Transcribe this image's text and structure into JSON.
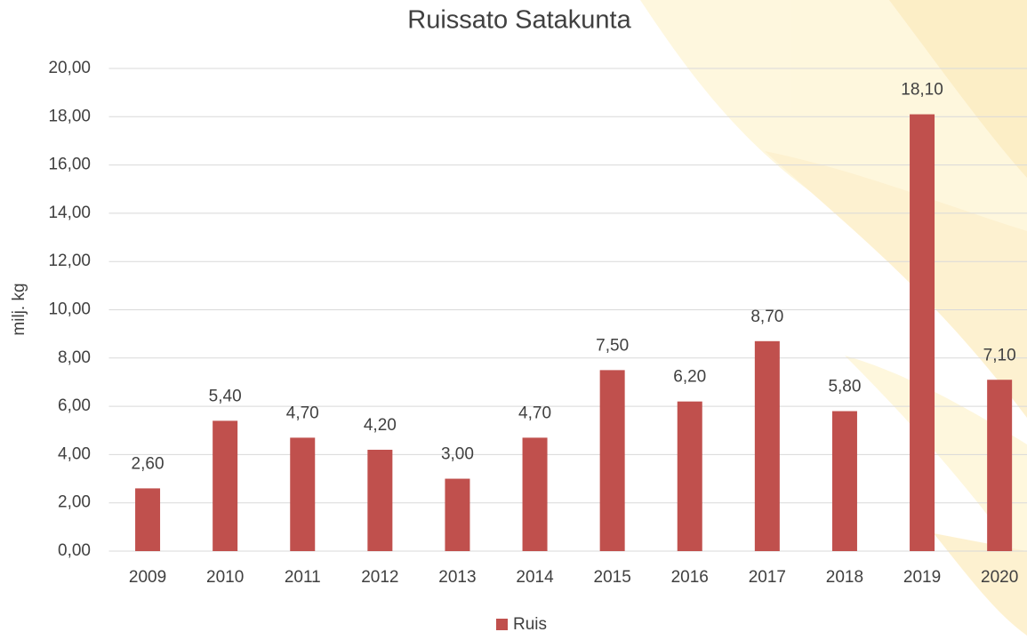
{
  "chart_data": {
    "type": "bar",
    "title": "Ruissato Satakunta",
    "ylabel": "milj. kg",
    "categories": [
      "2009",
      "2010",
      "2011",
      "2012",
      "2013",
      "2014",
      "2015",
      "2016",
      "2017",
      "2018",
      "2019",
      "2020"
    ],
    "series": [
      {
        "name": "Ruis",
        "color": "#c0504d",
        "values": [
          2.6,
          5.4,
          4.7,
          4.2,
          3.0,
          4.7,
          7.5,
          6.2,
          8.7,
          5.8,
          18.1,
          7.1
        ],
        "value_labels": [
          "2,60",
          "5,40",
          "4,70",
          "4,20",
          "3,00",
          "4,70",
          "7,50",
          "6,20",
          "8,70",
          "5,80",
          "18,10",
          "7,10"
        ]
      }
    ],
    "ylim": [
      0,
      20
    ],
    "yticks": [
      {
        "value": 0,
        "label": "0,00"
      },
      {
        "value": 2,
        "label": "2,00"
      },
      {
        "value": 4,
        "label": "4,00"
      },
      {
        "value": 6,
        "label": "6,00"
      },
      {
        "value": 8,
        "label": "8,00"
      },
      {
        "value": 10,
        "label": "10,00"
      },
      {
        "value": 12,
        "label": "12,00"
      },
      {
        "value": 14,
        "label": "14,00"
      },
      {
        "value": 16,
        "label": "16,00"
      },
      {
        "value": 18,
        "label": "18,00"
      },
      {
        "value": 20,
        "label": "20,00"
      }
    ],
    "grid": true,
    "legend": "bottom"
  }
}
